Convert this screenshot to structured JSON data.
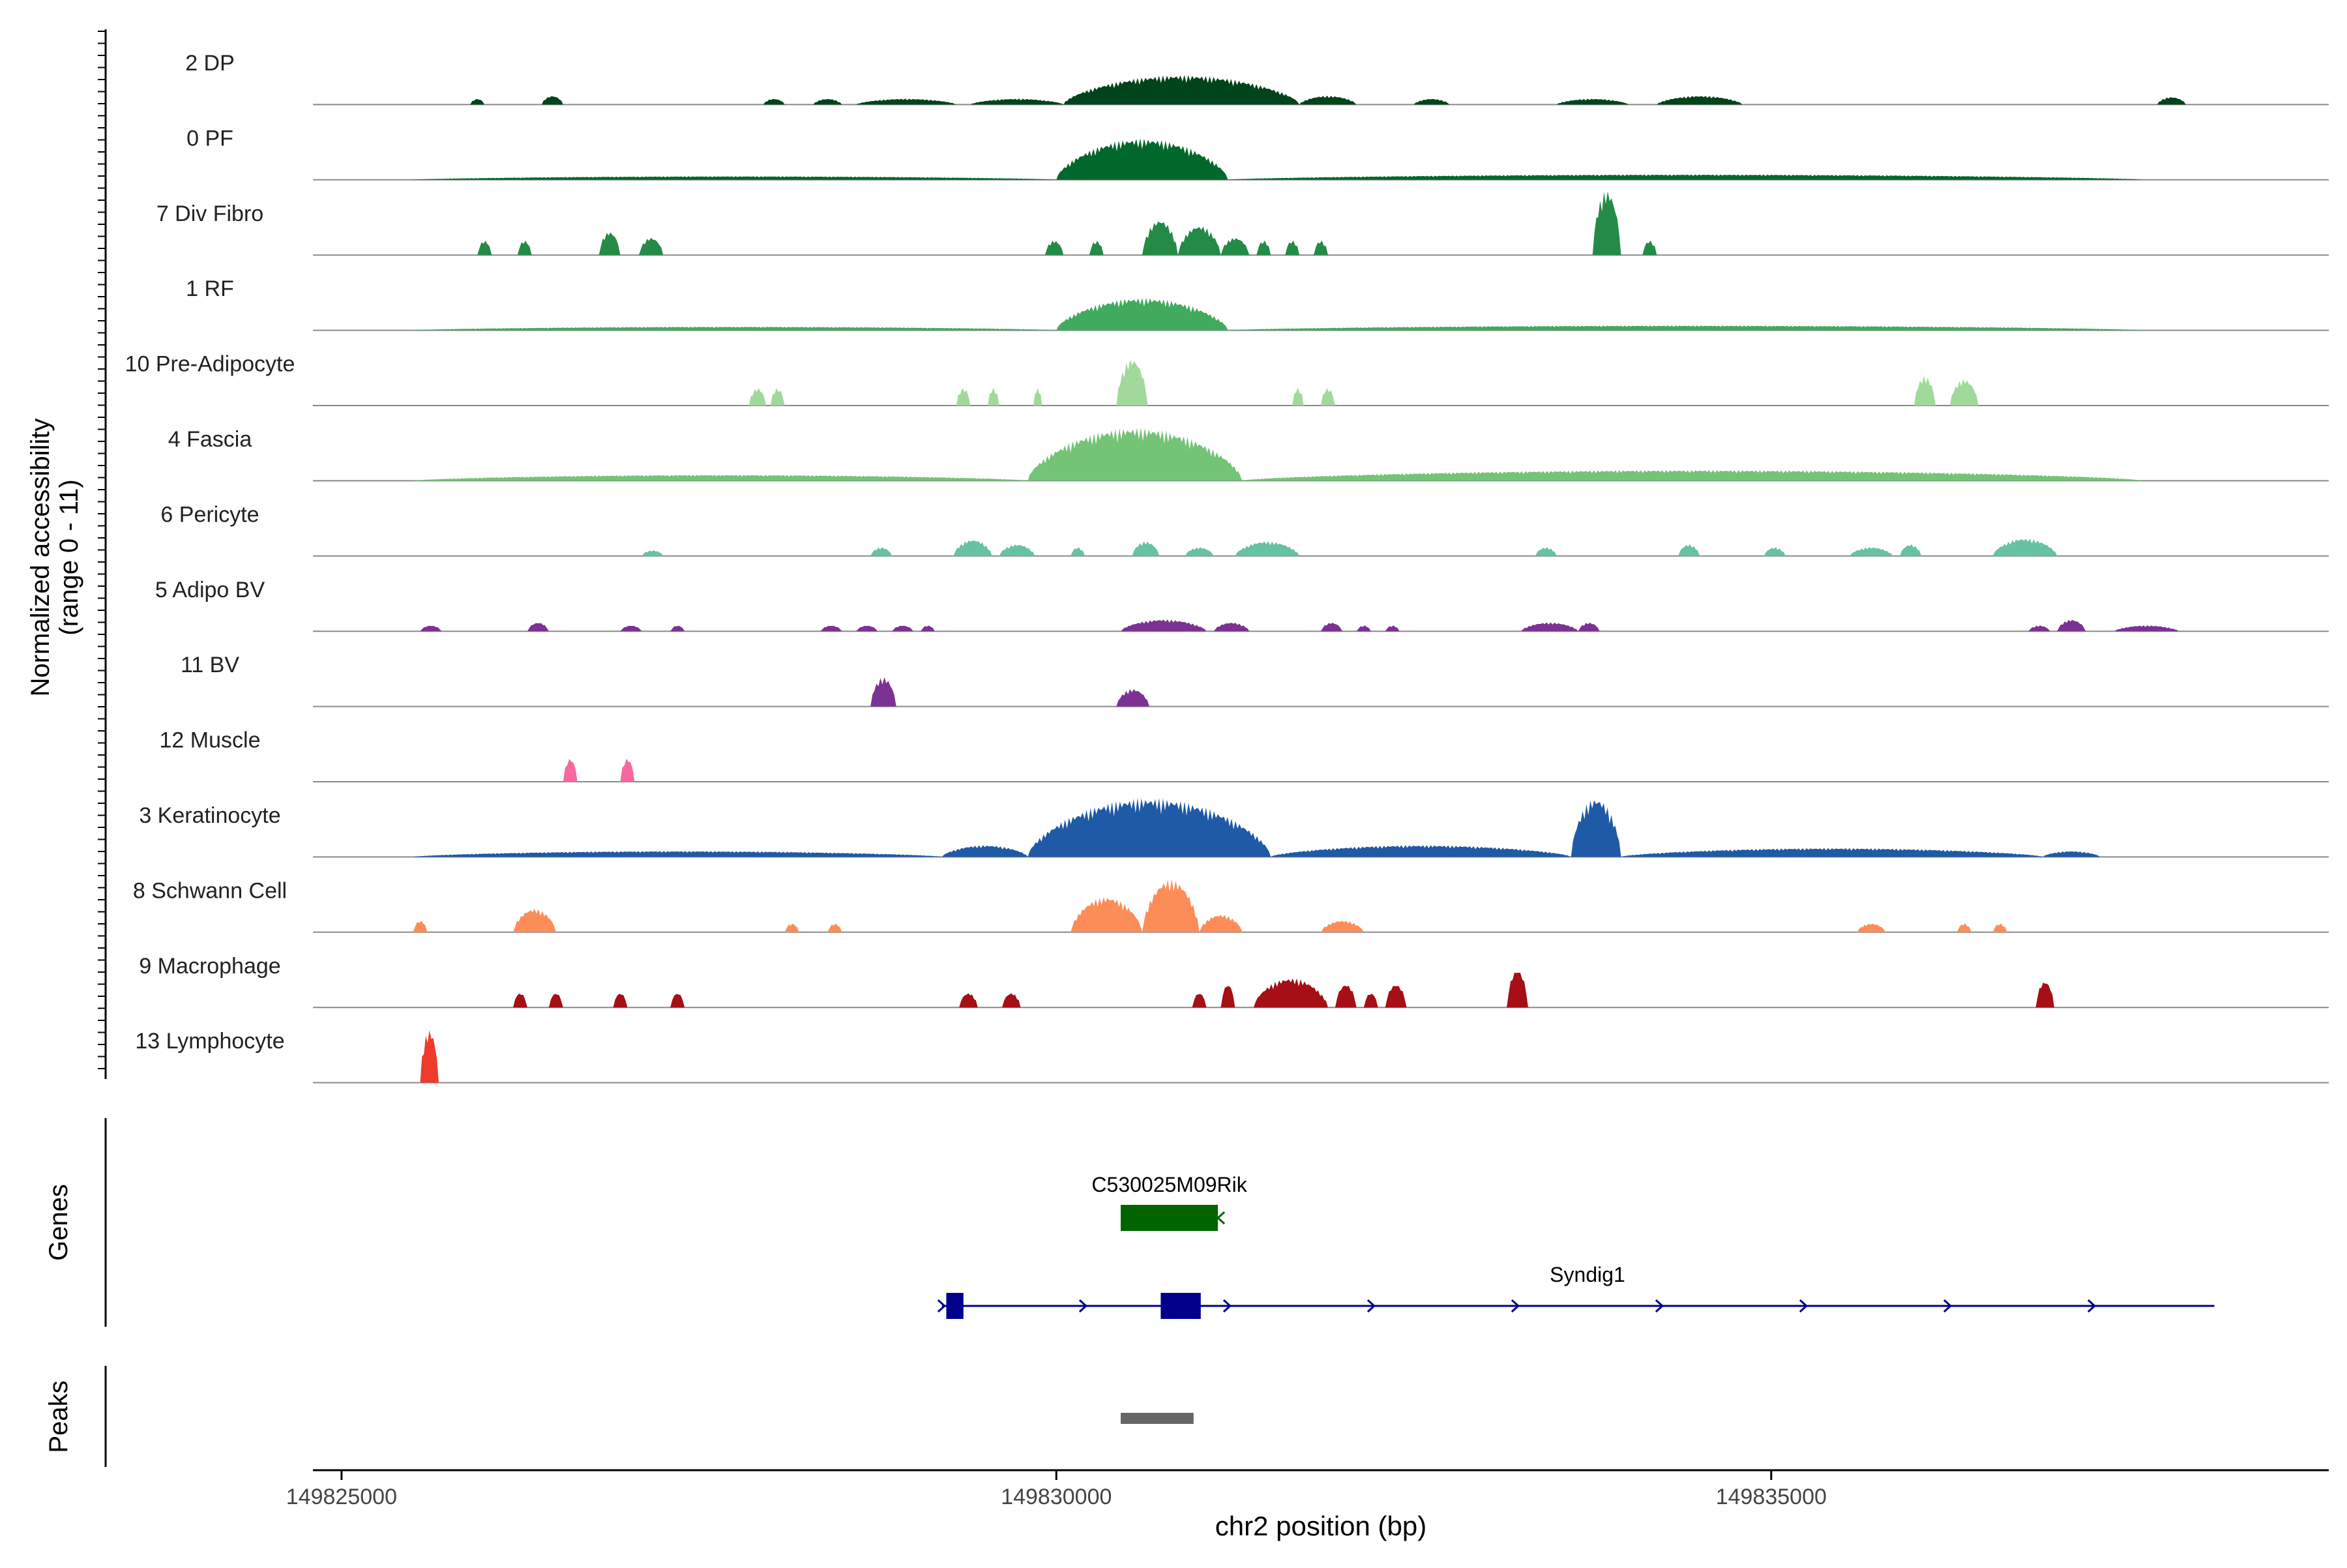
{
  "chart_data": {
    "type": "area",
    "title": "",
    "xlabel": "chr2 position (bp)",
    "ylabel_line1": "Normalized accessibility",
    "ylabel_line2": "(range 0 - 11)",
    "xlim": [
      149824800,
      149838900
    ],
    "x_ticks": [
      149825000,
      149830000,
      149835000
    ],
    "x_tick_labels": [
      "149825000",
      "149830000",
      "149835000"
    ],
    "ylim": [
      0,
      11
    ],
    "tracks": [
      {
        "name": "2 DP",
        "color": "#00441b",
        "peaks": [
          [
            149825900,
            149826000,
            1
          ],
          [
            149826400,
            149826550,
            1.5
          ],
          [
            149827950,
            149828100,
            1
          ],
          [
            149828300,
            149828500,
            1
          ],
          [
            149828600,
            149829300,
            1
          ],
          [
            149829400,
            149830050,
            1
          ],
          [
            149830050,
            149831700,
            5
          ],
          [
            149831700,
            149832100,
            1.5
          ],
          [
            149832500,
            149832750,
            1
          ],
          [
            149833500,
            149834000,
            1
          ],
          [
            149834200,
            149834800,
            1.5
          ],
          [
            149837700,
            149837900,
            1.3
          ]
        ]
      },
      {
        "name": "0 PF",
        "color": "#00682a",
        "peaks": [
          [
            149825500,
            149830000,
            0.6
          ],
          [
            149830000,
            149831200,
            7
          ],
          [
            149831200,
            149837600,
            0.9
          ]
        ]
      },
      {
        "name": "7 Div Fibro",
        "color": "#238b45",
        "peaks": [
          [
            149825950,
            149826050,
            2.5
          ],
          [
            149826230,
            149826330,
            2.5
          ],
          [
            149826800,
            149826950,
            4
          ],
          [
            149827080,
            149827250,
            3
          ],
          [
            149829920,
            149830050,
            2.5
          ],
          [
            149830230,
            149830330,
            2.5
          ],
          [
            149830600,
            149830850,
            6
          ],
          [
            149830850,
            149831150,
            5
          ],
          [
            149831150,
            149831350,
            3
          ],
          [
            149831400,
            149831500,
            2.5
          ],
          [
            149831600,
            149831700,
            2.5
          ],
          [
            149831800,
            149831900,
            2.5
          ],
          [
            149833750,
            149833950,
            11
          ],
          [
            149834100,
            149834200,
            2.5
          ]
        ]
      },
      {
        "name": "1 RF",
        "color": "#41ab5d",
        "peaks": [
          [
            149825500,
            149830000,
            0.6
          ],
          [
            149830000,
            149831200,
            5.5
          ],
          [
            149831200,
            149837600,
            0.8
          ]
        ]
      },
      {
        "name": "10 Pre-Adipocyte",
        "color": "#a1d99b",
        "peaks": [
          [
            149827850,
            149827970,
            3
          ],
          [
            149828000,
            149828100,
            3
          ],
          [
            149829300,
            149829400,
            3
          ],
          [
            149829520,
            149829600,
            3
          ],
          [
            149829840,
            149829900,
            3
          ],
          [
            149830420,
            149830640,
            8
          ],
          [
            149831650,
            149831730,
            3
          ],
          [
            149831850,
            149831950,
            3
          ],
          [
            149836000,
            149836150,
            5
          ],
          [
            149836250,
            149836450,
            4.5
          ]
        ]
      },
      {
        "name": "4 Fascia",
        "color": "#74c476",
        "peaks": [
          [
            149825500,
            149829800,
            1
          ],
          [
            149829800,
            149831300,
            9
          ],
          [
            149831300,
            149837600,
            1.8
          ]
        ]
      },
      {
        "name": "6 Pericyte",
        "color": "#66c2a4",
        "peaks": [
          [
            149827100,
            149827250,
            1
          ],
          [
            149828700,
            149828850,
            1.5
          ],
          [
            149829280,
            149829550,
            2.8
          ],
          [
            149829600,
            149829850,
            2
          ],
          [
            149830100,
            149830200,
            1.5
          ],
          [
            149830530,
            149830720,
            2.5
          ],
          [
            149830900,
            149831100,
            1.5
          ],
          [
            149831250,
            149831700,
            2.5
          ],
          [
            149833350,
            149833500,
            1.5
          ],
          [
            149834350,
            149834500,
            2
          ],
          [
            149834950,
            149835100,
            1.5
          ],
          [
            149835550,
            149835850,
            1.5
          ],
          [
            149835900,
            149836050,
            2
          ],
          [
            149836550,
            149837000,
            3
          ]
        ]
      },
      {
        "name": "5 Adipo BV",
        "color": "#7b3294",
        "peaks": [
          [
            149825550,
            149825700,
            1
          ],
          [
            149826300,
            149826450,
            1.5
          ],
          [
            149826950,
            149827100,
            1
          ],
          [
            149827300,
            149827400,
            1
          ],
          [
            149828350,
            149828500,
            1
          ],
          [
            149828600,
            149828750,
            1
          ],
          [
            149828850,
            149829000,
            1
          ],
          [
            149829050,
            149829150,
            1
          ],
          [
            149830450,
            149831050,
            2
          ],
          [
            149831100,
            149831350,
            1.5
          ],
          [
            149831850,
            149832000,
            1.5
          ],
          [
            149832100,
            149832200,
            1
          ],
          [
            149832300,
            149832400,
            1
          ],
          [
            149833250,
            149833650,
            1.5
          ],
          [
            149833650,
            149833800,
            1.5
          ],
          [
            149836800,
            149836950,
            1
          ],
          [
            149837000,
            149837200,
            2
          ],
          [
            149837400,
            149837850,
            1
          ]
        ]
      },
      {
        "name": "11 BV",
        "color": "#7b3294",
        "peaks": [
          [
            149828700,
            149828880,
            5
          ],
          [
            149830420,
            149830650,
            3
          ]
        ]
      },
      {
        "name": "12 Muscle",
        "color": "#f768a1",
        "peaks": [
          [
            149826550,
            149826650,
            4
          ],
          [
            149826950,
            149827050,
            4
          ]
        ]
      },
      {
        "name": "3 Keratinocyte",
        "color": "#1f5aa6",
        "peaks": [
          [
            149825500,
            149829200,
            1
          ],
          [
            149829200,
            149829800,
            2
          ],
          [
            149829800,
            149831500,
            10
          ],
          [
            149831500,
            149833600,
            2
          ],
          [
            149833600,
            149833950,
            10
          ],
          [
            149833950,
            149836900,
            1.5
          ],
          [
            149836900,
            149837300,
            1
          ]
        ]
      },
      {
        "name": "8 Schwann Cell",
        "color": "#fc8d59",
        "peaks": [
          [
            149825500,
            149825600,
            2
          ],
          [
            149826200,
            149826500,
            4
          ],
          [
            149828100,
            149828200,
            1.5
          ],
          [
            149828400,
            149828500,
            1.5
          ],
          [
            149830100,
            149830600,
            6
          ],
          [
            149830600,
            149831000,
            9
          ],
          [
            149831000,
            149831300,
            3
          ],
          [
            149831850,
            149832150,
            2
          ],
          [
            149835600,
            149835800,
            1.5
          ],
          [
            149836300,
            149836400,
            1.5
          ],
          [
            149836550,
            149836650,
            1.5
          ]
        ]
      },
      {
        "name": "9 Macrophage",
        "color": "#a50f15",
        "peaks": [
          [
            149826200,
            149826300,
            2.5
          ],
          [
            149826450,
            149826550,
            2.5
          ],
          [
            149826900,
            149827000,
            2.5
          ],
          [
            149827300,
            149827400,
            2.5
          ],
          [
            149829320,
            149829450,
            2.5
          ],
          [
            149829620,
            149829750,
            2.5
          ],
          [
            149830950,
            149831050,
            2.5
          ],
          [
            149831150,
            149831250,
            4
          ],
          [
            149831380,
            149831900,
            5
          ],
          [
            149831950,
            149832100,
            4
          ],
          [
            149832150,
            149832250,
            2.5
          ],
          [
            149832300,
            149832450,
            4
          ],
          [
            149833150,
            149833300,
            6.5
          ],
          [
            149836850,
            149836980,
            4.5
          ]
        ]
      },
      {
        "name": "13 Lymphocyte",
        "color": "#ef3b2c",
        "peaks": [
          [
            149825550,
            149825680,
            9
          ]
        ]
      }
    ],
    "genes_label": "Genes",
    "genes": [
      {
        "name": "C530025M09Rik",
        "start": 149830450,
        "end": 149831130,
        "strand": "-",
        "color": "#006400",
        "exons": [
          [
            149830450,
            149831130
          ]
        ]
      },
      {
        "name": "Syndig1",
        "start": 149829200,
        "end": 149838100,
        "strand": "+",
        "color": "#00008b",
        "exons": [
          [
            149829230,
            149829350
          ],
          [
            149830730,
            149831010
          ]
        ]
      }
    ],
    "peaks_label": "Peaks",
    "peak_regions": [
      [
        149830450,
        149830960
      ]
    ],
    "peak_region_color": "#666666"
  }
}
